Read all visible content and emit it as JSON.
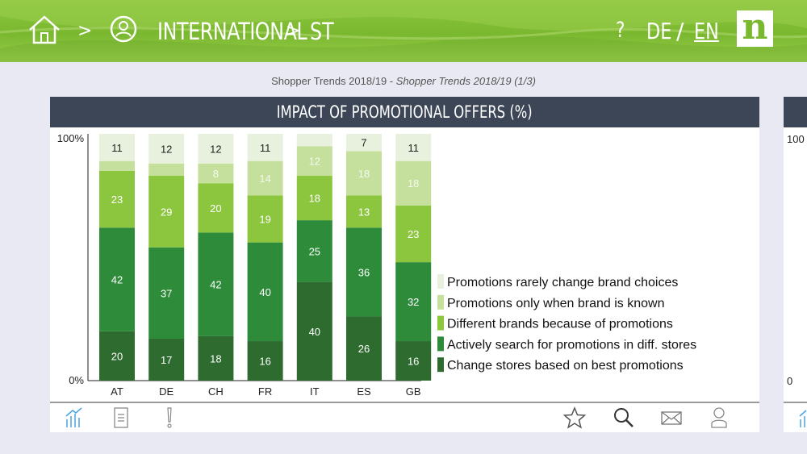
{
  "header": {
    "breadcrumb_sep": ">",
    "crumb1": "INTERNATIONAL",
    "crumb2": "ST",
    "help": "?",
    "lang_de": "DE",
    "lang_sep": "/",
    "lang_en": "EN",
    "logo": "n",
    "icons": [
      "home-icon",
      "person-icon"
    ]
  },
  "subtitle": {
    "main": "Shopper Trends 2018/19 - ",
    "italic": "Shopper Trends 2018/19 (1/3)"
  },
  "card": {
    "title": "IMPACT OF PROMOTIONAL OFFERS (%)"
  },
  "card2": {
    "y_top": "100",
    "y_bottom": "0"
  },
  "toolbar": {
    "icons": [
      "chart-icon",
      "document-icon",
      "exclamation-icon",
      "star-icon",
      "search-icon",
      "mail-icon",
      "user-icon"
    ]
  },
  "chart_data": {
    "type": "bar",
    "stacked": true,
    "categories": [
      "AT",
      "DE",
      "CH",
      "FR",
      "IT",
      "ES",
      "GB"
    ],
    "y_ticks": [
      "100%",
      "0%"
    ],
    "ylim": [
      0,
      100
    ],
    "legend_position": "right",
    "series": [
      {
        "name": "Change stores based on best promotions",
        "color": "#2e6b2f",
        "values": [
          20,
          17,
          18,
          16,
          40,
          26,
          16
        ],
        "labels": [
          "20",
          "17",
          "18",
          "16",
          "40",
          "26",
          "16"
        ]
      },
      {
        "name": "Actively search for promotions in diff. stores",
        "color": "#2e8b3a",
        "values": [
          42,
          37,
          42,
          40,
          25,
          36,
          32
        ],
        "labels": [
          "42",
          "37",
          "42",
          "40",
          "25",
          "36",
          "32"
        ]
      },
      {
        "name": "Different brands because of promotions",
        "color": "#8cc63f",
        "values": [
          23,
          29,
          20,
          19,
          18,
          13,
          23
        ],
        "labels": [
          "23",
          "29",
          "20",
          "19",
          "18",
          "13",
          "23"
        ]
      },
      {
        "name": "Promotions only when brand is known",
        "color": "#c5e09c",
        "values": [
          4,
          5,
          8,
          14,
          12,
          18,
          18
        ],
        "labels": [
          "",
          "",
          "8",
          "14",
          "12",
          "18",
          "18"
        ]
      },
      {
        "name": "Promotions rarely change brand choices",
        "color": "#e8f1dd",
        "values": [
          11,
          12,
          12,
          11,
          5,
          7,
          11
        ],
        "labels": [
          "11",
          "12",
          "12",
          "11",
          "",
          "7",
          "11"
        ]
      }
    ]
  }
}
